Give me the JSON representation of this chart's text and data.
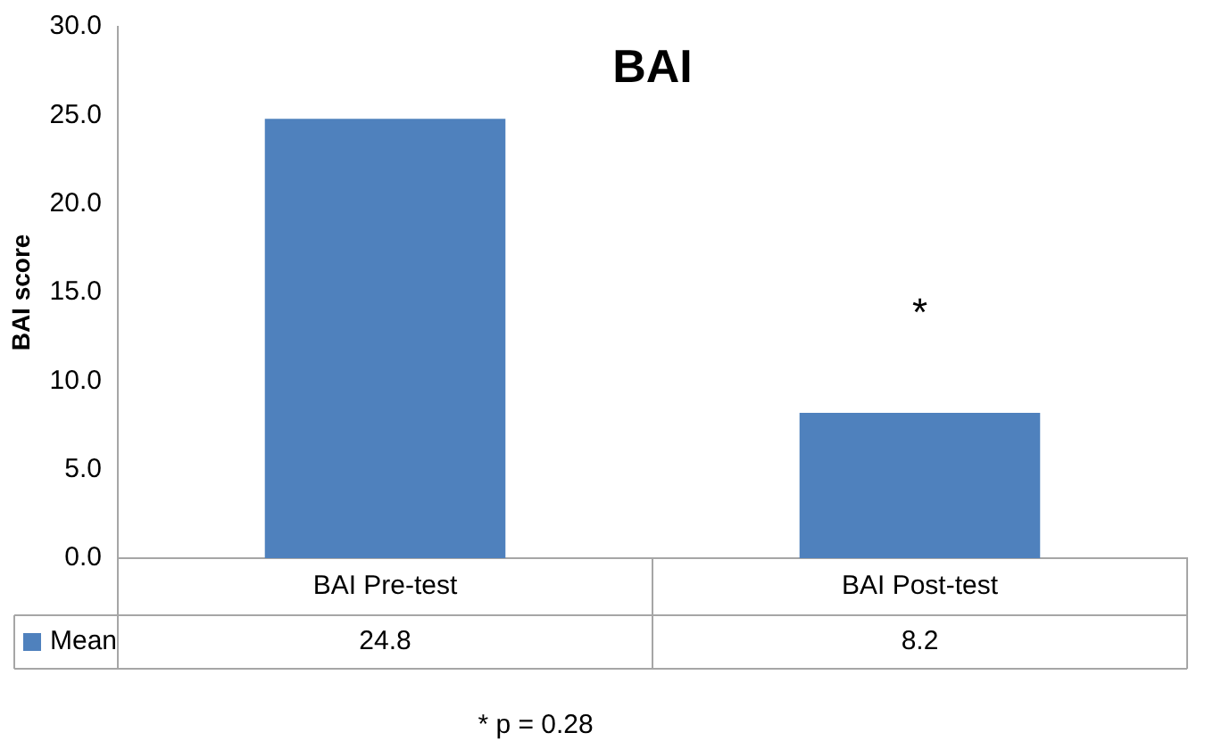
{
  "chart_data": {
    "type": "bar",
    "title": "BAI",
    "ylabel": "BAI score",
    "categories": [
      "BAI Pre-test",
      "BAI Post-test"
    ],
    "series": [
      {
        "name": "Mean",
        "color": "#4f81bd",
        "values": [
          24.8,
          8.2
        ]
      }
    ],
    "ylim": [
      0,
      30
    ],
    "yticks": [
      {
        "value": 0,
        "label": "0.0"
      },
      {
        "value": 5,
        "label": "5.0"
      },
      {
        "value": 10,
        "label": "10.0"
      },
      {
        "value": 15,
        "label": "15.0"
      },
      {
        "value": 20,
        "label": "20.0"
      },
      {
        "value": 25,
        "label": "25.0"
      },
      {
        "value": 30,
        "label": "30.0"
      }
    ],
    "grid": false,
    "data_labels": true,
    "annotations": [
      "*",
      "* p = 0.28"
    ]
  }
}
